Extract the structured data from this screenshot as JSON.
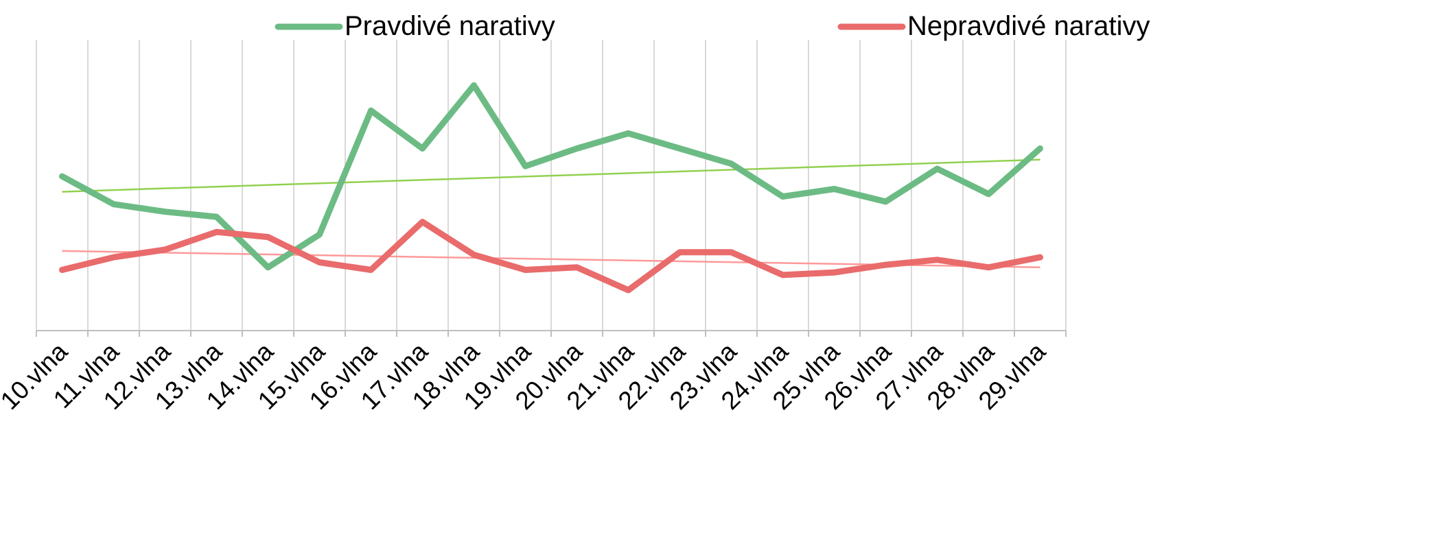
{
  "chart_data": {
    "type": "line",
    "categories": [
      "10.vlna",
      "11.vlna",
      "12.vlna",
      "13.vlna",
      "14.vlna",
      "15.vlna",
      "16.vlna",
      "17.vlna",
      "18.vlna",
      "19.vlna",
      "20.vlna",
      "21.vlna",
      "22.vlna",
      "23.vlna",
      "24.vlna",
      "25.vlna",
      "26.vlna",
      "27.vlna",
      "28.vlna",
      "29.vlna"
    ],
    "series": [
      {
        "name": "Pravdivé narativy",
        "color": "#6cbb84",
        "values": [
          61,
          50,
          47,
          45,
          25,
          38,
          87,
          72,
          97,
          65,
          72,
          78,
          72,
          66,
          53,
          56,
          51,
          64,
          54,
          72
        ],
        "trendline": true,
        "trend_color": "#92d050"
      },
      {
        "name": "Nepravdivé narativy",
        "color": "#e96b6b",
        "values": [
          24,
          29,
          32,
          39,
          37,
          27,
          24,
          43,
          30,
          24,
          25,
          16,
          31,
          31,
          22,
          23,
          26,
          28,
          25,
          29
        ],
        "trendline": true,
        "trend_color": "#ff9999"
      }
    ],
    "ylim": [
      0,
      115
    ],
    "y_axis_labels": false,
    "grid": "vertical",
    "legend": "top"
  }
}
